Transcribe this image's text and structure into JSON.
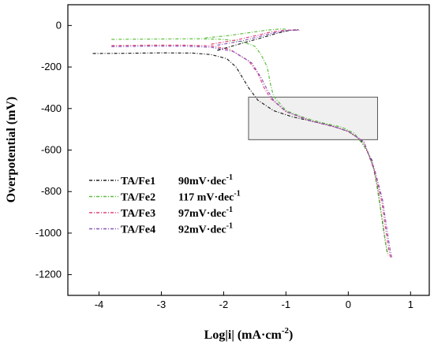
{
  "chart_data": {
    "type": "line",
    "xlabel": "Log|i| (mA·cm",
    "xlabel_sup": "-2",
    "xlabel_end": ")",
    "ylabel": "Overpotential (mV)",
    "xlim": [
      -4.5,
      1.3
    ],
    "ylim": [
      -1300,
      100
    ],
    "xticks": [
      -4,
      -3,
      -2,
      -1,
      0,
      1
    ],
    "yticks": [
      0,
      -200,
      -400,
      -600,
      -800,
      -1000,
      -1200
    ],
    "grid": false,
    "legend_position": "bottom-left",
    "annotation_box": {
      "x": [
        -1.6,
        0.47
      ],
      "y": [
        -550,
        -345
      ]
    },
    "series": [
      {
        "name": "TA/Fe1",
        "slope_label": "90mV·dec",
        "slope_sup": "-1",
        "color": "#222222",
        "x": [
          -4.1,
          -3.6,
          -3.0,
          -2.5,
          -2.2,
          -1.95,
          -1.8,
          -1.6,
          -1.45,
          -1.2,
          -0.9,
          -0.6,
          -0.3,
          0.0,
          0.2,
          0.38,
          0.48,
          0.55,
          0.6,
          0.63
        ],
        "y": [
          -135,
          -134,
          -132,
          -133,
          -140,
          -160,
          -200,
          -300,
          -360,
          -410,
          -440,
          -460,
          -480,
          -510,
          -550,
          -650,
          -800,
          -950,
          -1050,
          -1100
        ]
      },
      {
        "name": "TA/Fe2",
        "slope_label": "117 mV·dec",
        "slope_sup": "-1",
        "color": "#5fbf3f",
        "x": [
          -3.8,
          -3.0,
          -2.4,
          -2.0,
          -1.7,
          -1.5,
          -1.4,
          -1.3,
          -1.25,
          -1.2,
          -1.0,
          -0.7,
          -0.4,
          -0.1,
          0.1,
          0.3,
          0.42,
          0.5,
          0.56,
          0.6,
          0.64
        ],
        "y": [
          -67,
          -65,
          -64,
          -67,
          -78,
          -100,
          -140,
          -200,
          -280,
          -340,
          -410,
          -445,
          -470,
          -490,
          -520,
          -600,
          -700,
          -850,
          -960,
          -1050,
          -1110
        ]
      },
      {
        "name": "TA/Fe3",
        "slope_label": "97mV·dec",
        "slope_sup": "-1",
        "color": "#e0447a",
        "x": [
          -3.8,
          -3.2,
          -2.6,
          -2.2,
          -1.9,
          -1.6,
          -1.45,
          -1.35,
          -1.25,
          -1.0,
          -0.6,
          -0.2,
          0.0,
          0.25,
          0.42,
          0.54,
          0.6,
          0.65,
          0.68
        ],
        "y": [
          -97,
          -95,
          -95,
          -98,
          -115,
          -170,
          -230,
          -300,
          -350,
          -415,
          -460,
          -490,
          -510,
          -560,
          -700,
          -850,
          -980,
          -1080,
          -1120
        ]
      },
      {
        "name": "TA/Fe4",
        "slope_label": "92mV·dec",
        "slope_sup": "-1",
        "color": "#8855bb",
        "x": [
          -3.8,
          -3.2,
          -2.6,
          -2.2,
          -1.85,
          -1.55,
          -1.4,
          -1.3,
          -1.2,
          -1.0,
          -0.6,
          -0.2,
          0.0,
          0.25,
          0.42,
          0.55,
          0.62,
          0.67,
          0.7
        ],
        "y": [
          -102,
          -100,
          -100,
          -105,
          -125,
          -180,
          -250,
          -310,
          -360,
          -415,
          -460,
          -490,
          -510,
          -560,
          -690,
          -840,
          -980,
          -1080,
          -1120
        ]
      }
    ],
    "anodic_branches": [
      {
        "color": "#222222",
        "x": [
          -2.1,
          -1.7,
          -1.4,
          -1.15,
          -0.95,
          -0.8
        ],
        "y": [
          -120,
          -85,
          -60,
          -38,
          -24,
          -20
        ]
      },
      {
        "color": "#5fbf3f",
        "x": [
          -2.3,
          -1.9,
          -1.6,
          -1.3,
          -1.1,
          -1.0
        ],
        "y": [
          -60,
          -48,
          -35,
          -22,
          -17,
          -18
        ]
      },
      {
        "color": "#e0447a",
        "x": [
          -2.2,
          -1.8,
          -1.5,
          -1.25,
          -1.0,
          -0.8
        ],
        "y": [
          -90,
          -70,
          -50,
          -32,
          -22,
          -22
        ]
      },
      {
        "color": "#8855bb",
        "x": [
          -2.1,
          -1.7,
          -1.45,
          -1.2,
          -0.95,
          -0.78
        ],
        "y": [
          -95,
          -74,
          -55,
          -36,
          -23,
          -22
        ]
      }
    ]
  }
}
